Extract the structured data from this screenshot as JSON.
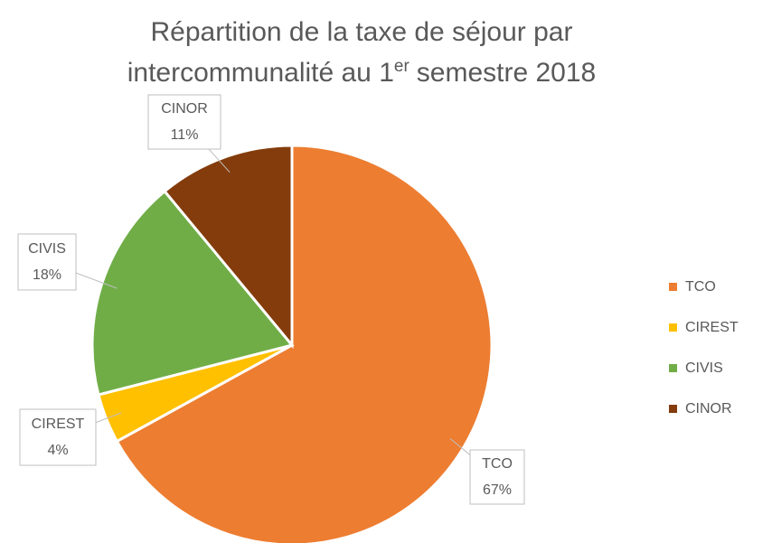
{
  "chart_data": {
    "type": "pie",
    "title": {
      "line1": "Répartition de la taxe de séjour par",
      "line2": "intercommunalité au 1",
      "superscript": "er",
      "line2_end": "semestre 2018"
    },
    "categories": [
      "TCO",
      "CIREST",
      "CIVIS",
      "CINOR"
    ],
    "values": [
      67,
      4,
      18,
      11
    ],
    "value_labels": [
      "67%",
      "4%",
      "18%",
      "11%"
    ],
    "colors": [
      "#ed7d31",
      "#ffc000",
      "#70ad47",
      "#843c0c"
    ],
    "legend": "right"
  }
}
